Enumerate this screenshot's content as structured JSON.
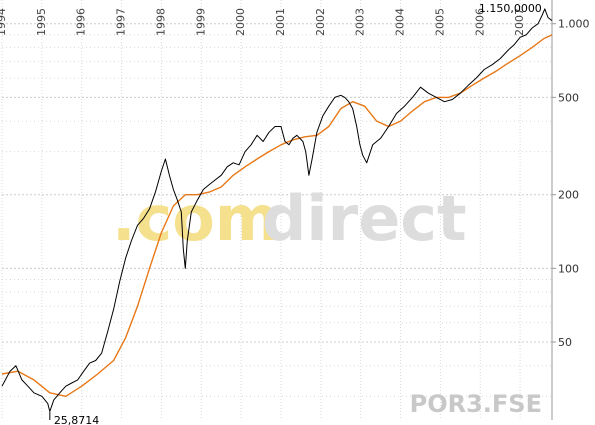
{
  "chart_data": {
    "type": "line",
    "scale": "log",
    "x_range": [
      1994.0,
      2007.8
    ],
    "ylim": [
      24,
      1250
    ],
    "y_ticks": [
      {
        "value": 1000,
        "label": "1.000"
      },
      {
        "value": 500,
        "label": "500"
      },
      {
        "value": 200,
        "label": "200"
      },
      {
        "value": 100,
        "label": "100"
      },
      {
        "value": 50,
        "label": "50"
      }
    ],
    "year_labels": [
      "1994",
      "1995",
      "1996",
      "1997",
      "1998",
      "1999",
      "2000",
      "2001",
      "2002",
      "2003",
      "2004",
      "2005",
      "2006",
      "2007"
    ],
    "grid": true,
    "annotations": {
      "high": {
        "label": "1.150,0000",
        "x": 2007.62,
        "y": 1150
      },
      "low": {
        "label": "25,8714",
        "x": 1995.2,
        "y": 25.87
      }
    },
    "watermark": {
      "part1": ".com",
      "part2": "direct"
    },
    "symbol": "POR3.FSE",
    "colors": {
      "price": "#000000",
      "average": "#e87817",
      "grid": "#d9d9d9",
      "axis": "#999999"
    },
    "series": [
      {
        "x": [
          1994.0,
          1994.2,
          1994.35,
          1994.5,
          1994.65,
          1994.8,
          1995.0,
          1995.15,
          1995.2,
          1995.3,
          1995.45,
          1995.6,
          1995.75,
          1995.9,
          1996.05,
          1996.2,
          1996.35,
          1996.5,
          1996.65,
          1996.8,
          1996.95,
          1997.1,
          1997.25,
          1997.4,
          1997.55,
          1997.7,
          1997.85,
          1998.0,
          1998.1,
          1998.2,
          1998.3,
          1998.4,
          1998.5,
          1998.55,
          1998.6,
          1998.65,
          1998.75,
          1998.9,
          1999.05,
          1999.2,
          1999.35,
          1999.5,
          1999.65,
          1999.8,
          1999.95,
          2000.1,
          2000.25,
          2000.4,
          2000.55,
          2000.7,
          2000.85,
          2001.0,
          2001.1,
          2001.2,
          2001.3,
          2001.4,
          2001.55,
          2001.62,
          2001.7,
          2001.78,
          2001.9,
          2002.05,
          2002.2,
          2002.35,
          2002.5,
          2002.6,
          2002.7,
          2002.8,
          2002.9,
          2002.98,
          2003.05,
          2003.15,
          2003.3,
          2003.5,
          2003.7,
          2003.9,
          2004.1,
          2004.3,
          2004.5,
          2004.7,
          2004.9,
          2005.1,
          2005.3,
          2005.5,
          2005.7,
          2005.9,
          2006.1,
          2006.3,
          2006.5,
          2006.7,
          2006.85,
          2007.0,
          2007.15,
          2007.3,
          2007.45,
          2007.55,
          2007.62,
          2007.7,
          2007.8
        ],
        "values": [
          33,
          38,
          40,
          35,
          33,
          31,
          30,
          28,
          26,
          29,
          31,
          33,
          34,
          35,
          38,
          41,
          42,
          45,
          55,
          68,
          88,
          110,
          130,
          150,
          160,
          175,
          205,
          250,
          280,
          240,
          210,
          190,
          170,
          120,
          100,
          130,
          170,
          190,
          210,
          220,
          230,
          240,
          260,
          270,
          265,
          300,
          320,
          350,
          330,
          360,
          380,
          380,
          330,
          320,
          340,
          350,
          330,
          300,
          240,
          280,
          360,
          420,
          460,
          500,
          510,
          500,
          480,
          450,
          380,
          320,
          290,
          270,
          320,
          340,
          380,
          430,
          460,
          500,
          550,
          520,
          500,
          480,
          490,
          520,
          560,
          600,
          650,
          680,
          720,
          780,
          820,
          880,
          900,
          960,
          1000,
          1080,
          1150,
          1060,
          1030
        ]
      },
      {
        "x": [
          1994.0,
          1994.4,
          1994.8,
          1995.2,
          1995.6,
          1996.0,
          1996.4,
          1996.8,
          1997.1,
          1997.4,
          1997.7,
          1998.0,
          1998.3,
          1998.6,
          1998.9,
          1999.2,
          1999.5,
          1999.8,
          2000.1,
          2000.4,
          2000.7,
          2001.0,
          2001.3,
          2001.6,
          2001.9,
          2002.2,
          2002.5,
          2002.8,
          2003.1,
          2003.4,
          2003.7,
          2004.0,
          2004.3,
          2004.6,
          2004.9,
          2005.2,
          2005.5,
          2005.8,
          2006.1,
          2006.4,
          2006.7,
          2007.0,
          2007.3,
          2007.6,
          2007.8
        ],
        "values": [
          37,
          38,
          35,
          31,
          30,
          33,
          37,
          42,
          52,
          70,
          100,
          140,
          180,
          200,
          200,
          205,
          215,
          240,
          260,
          280,
          300,
          320,
          335,
          345,
          350,
          380,
          450,
          480,
          460,
          400,
          380,
          400,
          440,
          480,
          500,
          500,
          520,
          560,
          600,
          640,
          690,
          740,
          800,
          870,
          900
        ]
      }
    ]
  }
}
